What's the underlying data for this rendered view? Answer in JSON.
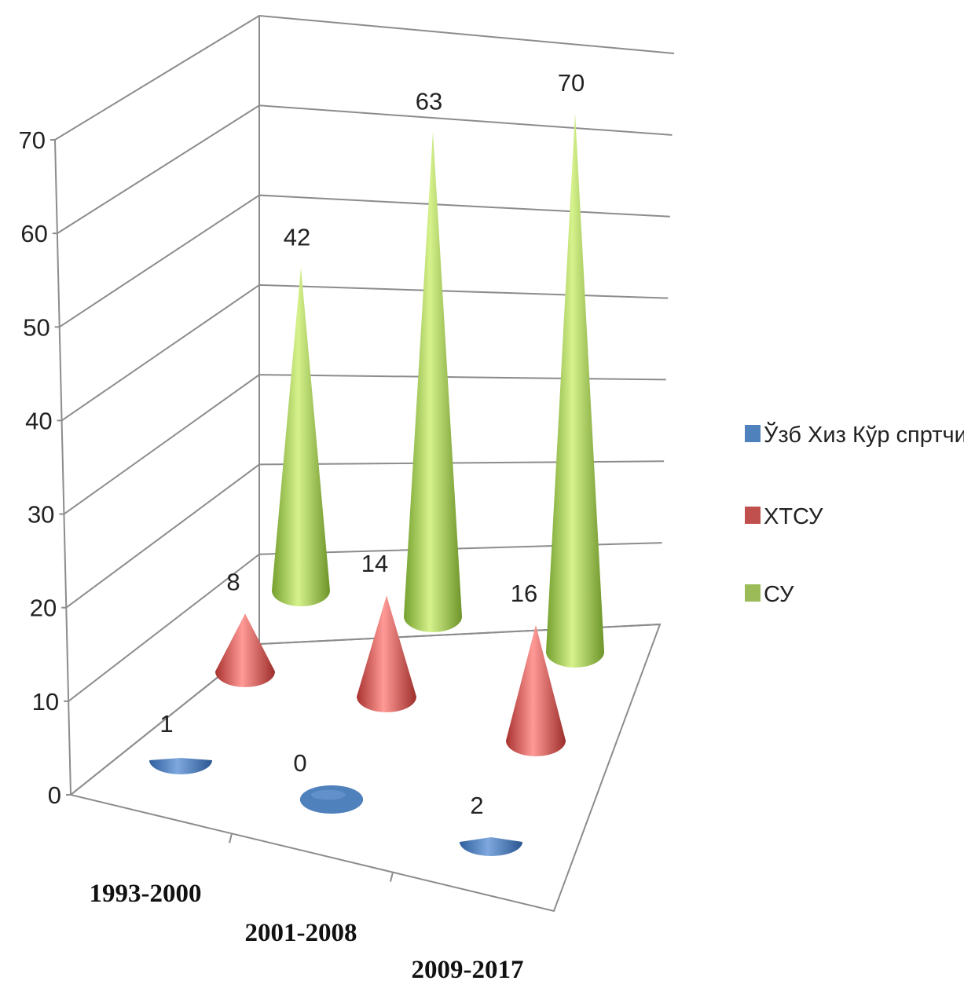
{
  "chart_data": {
    "type": "bar",
    "style": "3d-cone",
    "categories": [
      "1993-2000",
      "2001-2008",
      "2009-2017"
    ],
    "series": [
      {
        "name": "Ўзб  Хиз  Кўр спртчи",
        "values": [
          1,
          0,
          2
        ],
        "color": "#4f81bd"
      },
      {
        "name": "ХТСУ",
        "values": [
          8,
          14,
          16
        ],
        "color": "#c0504d"
      },
      {
        "name": "СУ",
        "values": [
          42,
          63,
          70
        ],
        "color": "#9bbb59"
      }
    ],
    "y_ticks": [
      "0",
      "10",
      "20",
      "30",
      "40",
      "50",
      "60",
      "70"
    ],
    "ylim": [
      0,
      70
    ],
    "grid": true,
    "legend": "right",
    "data_labels": true
  }
}
